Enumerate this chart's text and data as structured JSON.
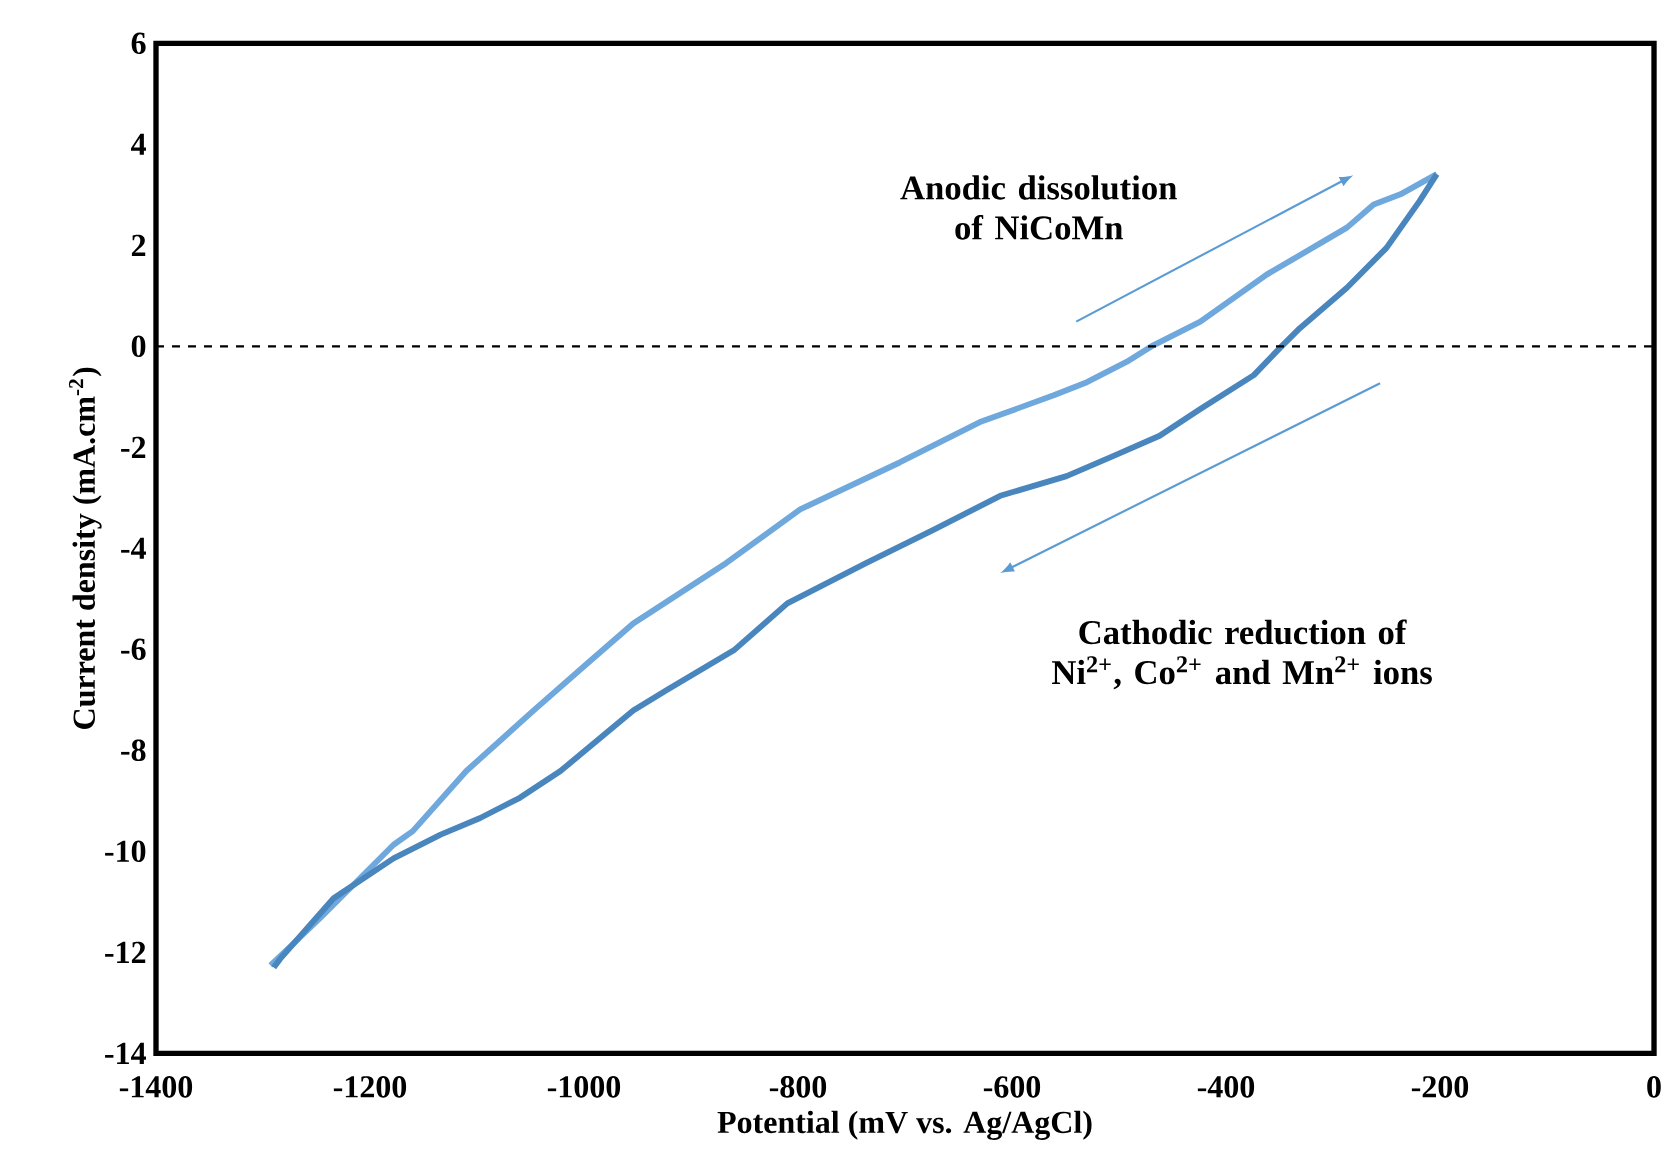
{
  "chart_data": {
    "type": "line",
    "xlabel": "Potential (mV vs. Ag/AgCl)",
    "ylabel": "Current density (mA.cm$^{-2}$)",
    "xlim": [
      -1400,
      0
    ],
    "xticks": [
      -1400,
      -1200,
      -1000,
      -800,
      -600,
      -400,
      -200,
      0
    ],
    "ylim": [
      -14,
      6
    ],
    "yticks": [
      -14,
      -12,
      -10,
      -8,
      -6,
      -4,
      -2,
      0,
      2,
      4,
      6
    ],
    "grid": false,
    "marker": "none",
    "line_style": "solid",
    "series": [
      {
        "color": "#6fa8dc",
        "x": [
          -1293,
          -1247,
          -1178,
          -1160,
          -1110,
          -1047,
          -997,
          -954,
          -867,
          -798,
          -705,
          -630,
          -561,
          -530,
          -493,
          -468,
          -424,
          -362,
          -287,
          -262,
          -237,
          -203
        ],
        "values": [
          -12.26,
          -11.33,
          -9.87,
          -9.6,
          -8.41,
          -7.21,
          -6.28,
          -5.49,
          -4.29,
          -3.23,
          -2.3,
          -1.5,
          -0.97,
          -0.71,
          -0.31,
          0.02,
          0.49,
          1.42,
          2.35,
          2.81,
          3.01,
          3.41
        ]
      },
      {
        "color": "#4a86be",
        "x": [
          -203,
          -219,
          -250,
          -287,
          -331,
          -350,
          -374,
          -424,
          -462,
          -505,
          -549,
          -611,
          -673,
          -736,
          -810,
          -860,
          -923,
          -954,
          -1022,
          -1060,
          -1097,
          -1134,
          -1178,
          -1234,
          -1284,
          -1290
        ],
        "values": [
          3.41,
          2.88,
          1.95,
          1.16,
          0.36,
          -0.04,
          -0.57,
          -1.24,
          -1.77,
          -2.17,
          -2.57,
          -2.96,
          -3.63,
          -4.29,
          -5.09,
          -6.02,
          -6.81,
          -7.21,
          -8.41,
          -8.94,
          -9.34,
          -9.67,
          -10.14,
          -10.93,
          -12.13,
          -12.3
        ]
      }
    ],
    "ref_lines": [
      {
        "axis": "y",
        "value": 0,
        "color": "#000000",
        "line_style": "dashed"
      }
    ],
    "annotations": [
      "Anodic dissolution of NiCoMn",
      "Cathodic reduction of Ni$^{2+}$, Co$^{2+}$ and Mn$^{2+}$ ions"
    ]
  }
}
